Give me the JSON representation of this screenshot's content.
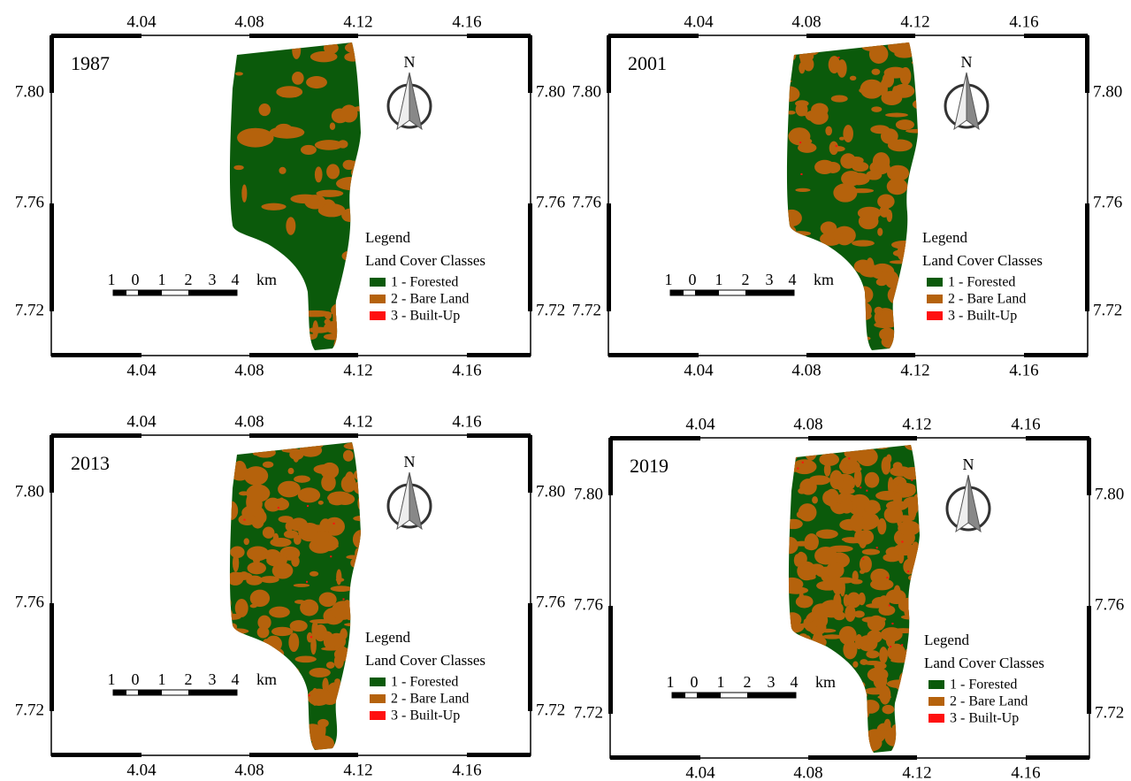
{
  "panels": [
    {
      "title": "1987"
    },
    {
      "title": "2001"
    },
    {
      "title": "2013"
    },
    {
      "title": "2019"
    }
  ],
  "axes": {
    "xticks": [
      "4.04",
      "4.08",
      "4.12",
      "4.16"
    ],
    "yticks": [
      "7.80",
      "7.76",
      "7.72"
    ]
  },
  "north": "N",
  "legend": {
    "title": "Legend",
    "subtitle": "Land Cover Classes",
    "classes": [
      {
        "label": "1 - Forested",
        "color": "#0b5a0b"
      },
      {
        "label": "2 - Bare Land",
        "color": "#b5620c"
      },
      {
        "label": "3 - Built-Up",
        "color": "#ff1010"
      }
    ]
  },
  "scale_bar": {
    "labels": [
      "1",
      "0",
      "1",
      "2",
      "3",
      "4",
      "km"
    ]
  }
}
